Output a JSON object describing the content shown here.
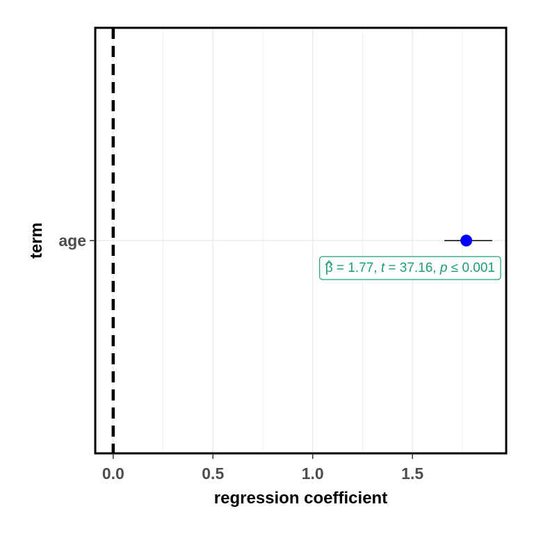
{
  "chart_data": {
    "type": "scatter",
    "subtype": "coefficient-plot",
    "title": "",
    "xlabel": "regression coefficient",
    "ylabel": "term",
    "xlim": [
      -0.09,
      1.97
    ],
    "x_ticks": [
      0.0,
      0.5,
      1.0,
      1.5
    ],
    "x_tick_labels": [
      "0.0",
      "0.5",
      "1.0",
      "1.5"
    ],
    "grid": true,
    "legend": "none",
    "reference_line": {
      "x": 0,
      "style": "dashed"
    },
    "terms": [
      {
        "term": "age",
        "estimate": 1.77,
        "conf_low": 1.66,
        "conf_high": 1.9,
        "label": {
          "beta_symbol": "β",
          "beta_eq": " = 1.77, ",
          "t_symbol": "t",
          "t_eq": " = 37.16, ",
          "p_symbol": "p",
          "p_eq": " ≤ 0.001"
        }
      }
    ],
    "colors": {
      "point": "#0000ff",
      "label": "#1b9e77",
      "errorbar": "#000000",
      "reference_line": "#000000",
      "grid": "#ebebeb",
      "panel_border": "#000000"
    }
  }
}
